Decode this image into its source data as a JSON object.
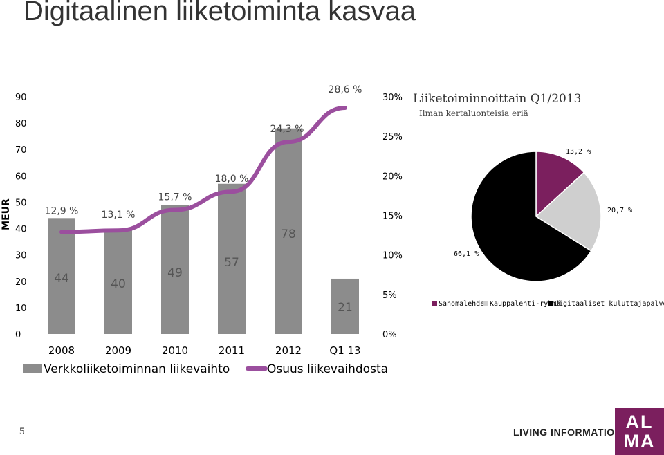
{
  "title": "Digitaalinen liiketoiminta kasvaa",
  "page_number": "5",
  "tagline": "LIVING INFORMATION",
  "logo": {
    "line1": "AL",
    "line2": "MA"
  },
  "colors": {
    "bar": "#8c8c8c",
    "line": "#9b4f9e",
    "pie_sanomalehdet": "#7b1f5e",
    "pie_kauppalehti": "#cfcfcf",
    "pie_digitaaliset": "#000000",
    "logo": "#7b1f5e"
  },
  "chart_data": [
    {
      "type": "bar",
      "ylabel": "MEUR",
      "ylim": [
        0,
        90
      ],
      "yticks": [
        "0",
        "10",
        "20",
        "30",
        "40",
        "50",
        "60",
        "70",
        "80",
        "90"
      ],
      "y2lim": [
        0,
        30
      ],
      "y2ticks": [
        "0%",
        "5%",
        "10%",
        "15%",
        "20%",
        "25%",
        "30%"
      ],
      "categories": [
        "2008",
        "2009",
        "2010",
        "2011",
        "2012",
        "Q1 13"
      ],
      "series": [
        {
          "name": "Verkkoliiketoiminnan liikevaihto",
          "type": "bar",
          "axis": "left",
          "values": [
            44,
            40,
            49,
            57,
            78,
            21
          ],
          "labels": [
            "44",
            "40",
            "49",
            "57",
            "78",
            "21"
          ]
        },
        {
          "name": "Osuus liikevaihdosta",
          "type": "line",
          "axis": "right",
          "values": [
            12.9,
            13.1,
            15.7,
            18.0,
            24.3,
            28.6
          ],
          "labels": [
            "12,9 %",
            "13,1 %",
            "15,7 %",
            "18,0 %",
            "24,3 %",
            "28,6 %"
          ]
        }
      ],
      "legend": [
        "Verkkoliiketoiminnan liikevaihto",
        "Osuus liikevaihdosta"
      ]
    },
    {
      "type": "pie",
      "title": "Liiketoiminnoittain Q1/2013",
      "subtitle": "Ilman kertaluonteisia eriä",
      "slices": [
        {
          "name": "Sanomalehdet",
          "value": 13.2,
          "label": "13,2 %"
        },
        {
          "name": "Kauppalehti-ryhmä",
          "value": 20.7,
          "label": "20,7 %"
        },
        {
          "name": "Digitaaliset kuluttajapalvelut",
          "value": 66.1,
          "label": "66,1 %"
        }
      ]
    }
  ]
}
